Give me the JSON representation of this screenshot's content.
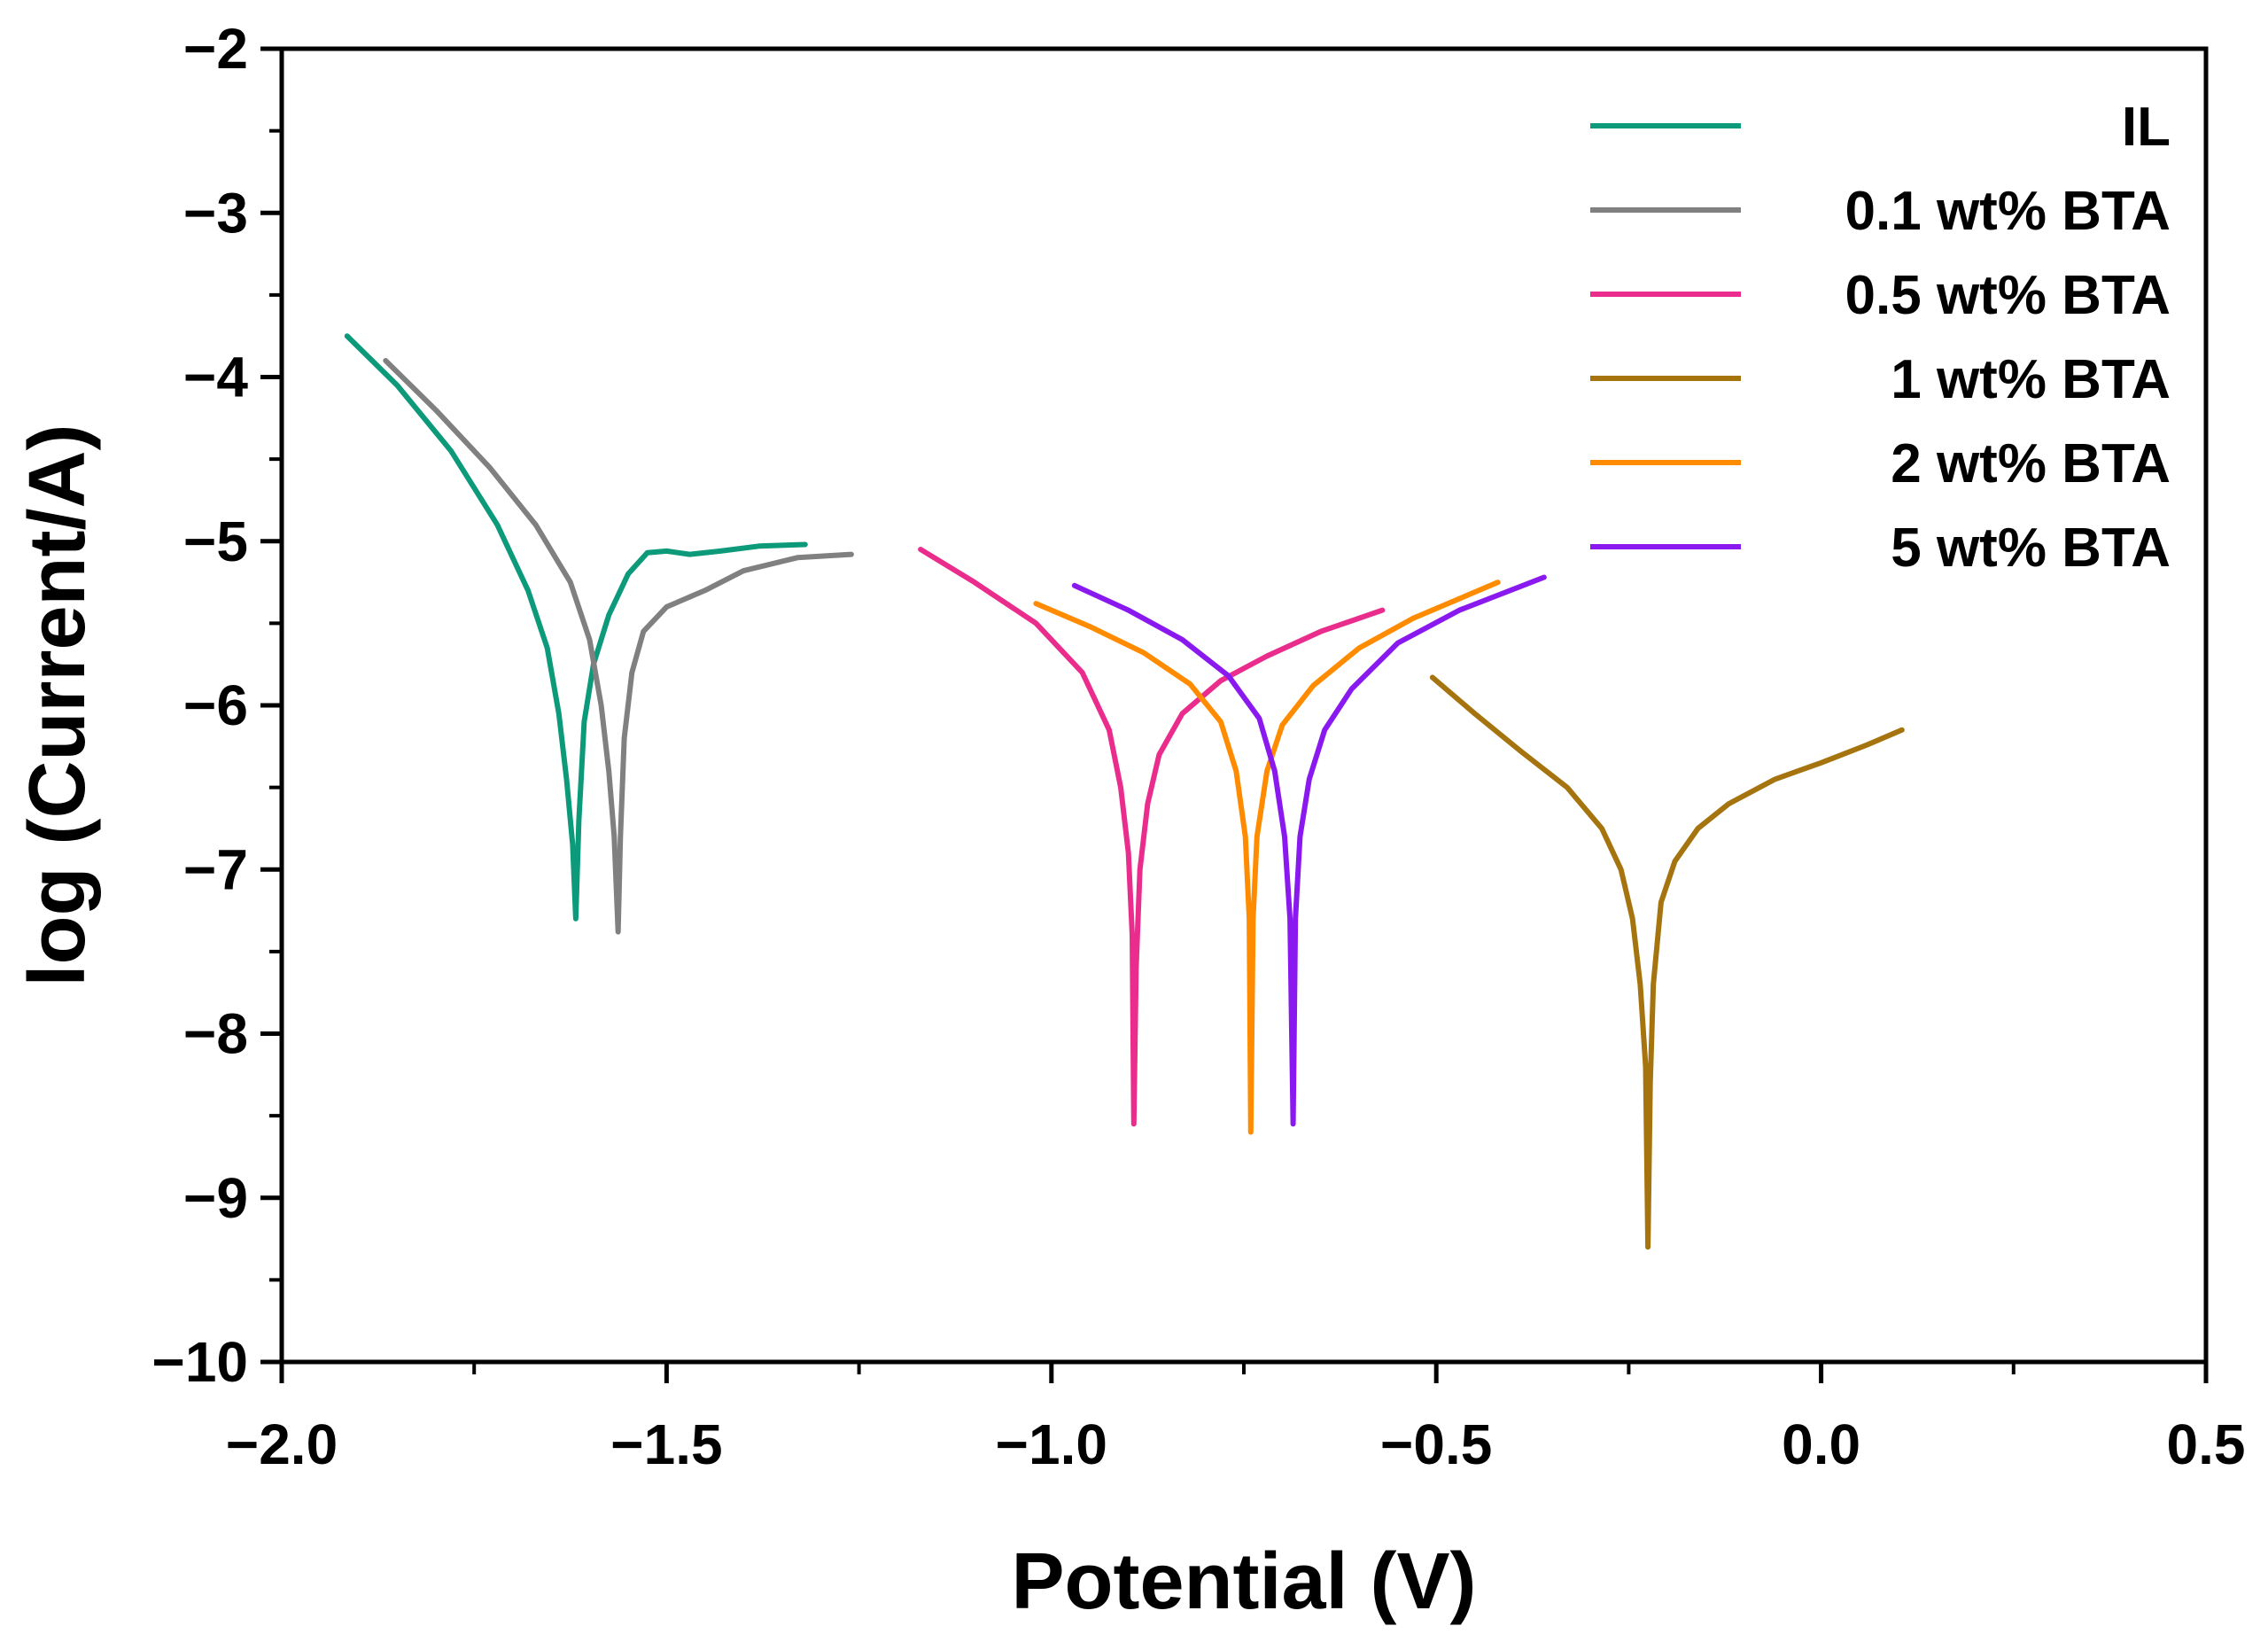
{
  "chart_data": {
    "type": "line",
    "title": "",
    "xlabel": "Potential (V)",
    "ylabel": "log (Current/A)",
    "xlim": [
      -2.0,
      0.5
    ],
    "ylim": [
      -10,
      -2
    ],
    "x_ticks": [
      -2.0,
      -1.5,
      -1.0,
      -0.5,
      0.0,
      0.5
    ],
    "x_tick_labels": [
      "−2.0",
      "−1.5",
      "−1.0",
      "−0.5",
      "0.0",
      "0.5"
    ],
    "y_ticks": [
      -2,
      -3,
      -4,
      -5,
      -6,
      -7,
      -8,
      -9,
      -10
    ],
    "y_tick_labels": [
      "−2",
      "−3",
      "−4",
      "−5",
      "−6",
      "−7",
      "−8",
      "−9",
      "−10"
    ],
    "grid": false,
    "legend_position": "top-right",
    "series": [
      {
        "name": "IL",
        "color": "#0c9a7a",
        "points": [
          [
            -1.915,
            -3.75
          ],
          [
            -1.85,
            -4.05
          ],
          [
            -1.78,
            -4.45
          ],
          [
            -1.72,
            -4.9
          ],
          [
            -1.68,
            -5.3
          ],
          [
            -1.655,
            -5.65
          ],
          [
            -1.64,
            -6.05
          ],
          [
            -1.63,
            -6.45
          ],
          [
            -1.622,
            -6.85
          ],
          [
            -1.618,
            -7.3
          ],
          [
            -1.614,
            -6.7
          ],
          [
            -1.607,
            -6.1
          ],
          [
            -1.595,
            -5.75
          ],
          [
            -1.575,
            -5.45
          ],
          [
            -1.55,
            -5.2
          ],
          [
            -1.525,
            -5.07
          ],
          [
            -1.5,
            -5.06
          ],
          [
            -1.47,
            -5.08
          ],
          [
            -1.43,
            -5.06
          ],
          [
            -1.38,
            -5.03
          ],
          [
            -1.32,
            -5.02
          ]
        ]
      },
      {
        "name": "0.1 wt% BTA",
        "color": "#808080",
        "points": [
          [
            -1.865,
            -3.9
          ],
          [
            -1.8,
            -4.2
          ],
          [
            -1.73,
            -4.55
          ],
          [
            -1.67,
            -4.9
          ],
          [
            -1.625,
            -5.25
          ],
          [
            -1.6,
            -5.6
          ],
          [
            -1.585,
            -6.0
          ],
          [
            -1.575,
            -6.4
          ],
          [
            -1.568,
            -6.8
          ],
          [
            -1.563,
            -7.38
          ],
          [
            -1.56,
            -6.8
          ],
          [
            -1.555,
            -6.2
          ],
          [
            -1.545,
            -5.8
          ],
          [
            -1.53,
            -5.55
          ],
          [
            -1.5,
            -5.4
          ],
          [
            -1.45,
            -5.3
          ],
          [
            -1.4,
            -5.18
          ],
          [
            -1.33,
            -5.1
          ],
          [
            -1.26,
            -5.08
          ]
        ]
      },
      {
        "name": "0.5 wt% BTA",
        "color": "#ea2d8c",
        "points": [
          [
            -1.17,
            -5.05
          ],
          [
            -1.1,
            -5.25
          ],
          [
            -1.02,
            -5.5
          ],
          [
            -0.96,
            -5.8
          ],
          [
            -0.925,
            -6.15
          ],
          [
            -0.91,
            -6.5
          ],
          [
            -0.9,
            -6.9
          ],
          [
            -0.895,
            -7.4
          ],
          [
            -0.893,
            -8.55
          ],
          [
            -0.89,
            -7.6
          ],
          [
            -0.885,
            -7.0
          ],
          [
            -0.875,
            -6.6
          ],
          [
            -0.86,
            -6.3
          ],
          [
            -0.83,
            -6.05
          ],
          [
            -0.78,
            -5.85
          ],
          [
            -0.72,
            -5.7
          ],
          [
            -0.65,
            -5.55
          ],
          [
            -0.57,
            -5.42
          ]
        ]
      },
      {
        "name": "1 wt% BTA",
        "color": "#a6740e",
        "points": [
          [
            -0.505,
            -5.83
          ],
          [
            -0.45,
            -6.05
          ],
          [
            -0.39,
            -6.28
          ],
          [
            -0.33,
            -6.5
          ],
          [
            -0.285,
            -6.75
          ],
          [
            -0.26,
            -7.0
          ],
          [
            -0.245,
            -7.3
          ],
          [
            -0.235,
            -7.7
          ],
          [
            -0.228,
            -8.2
          ],
          [
            -0.225,
            -9.3
          ],
          [
            -0.222,
            -8.3
          ],
          [
            -0.218,
            -7.7
          ],
          [
            -0.208,
            -7.2
          ],
          [
            -0.19,
            -6.95
          ],
          [
            -0.16,
            -6.75
          ],
          [
            -0.12,
            -6.6
          ],
          [
            -0.06,
            -6.45
          ],
          [
            0.0,
            -6.35
          ],
          [
            0.06,
            -6.24
          ],
          [
            0.105,
            -6.15
          ]
        ]
      },
      {
        "name": "2 wt% BTA",
        "color": "#ff8c00",
        "points": [
          [
            -1.02,
            -5.38
          ],
          [
            -0.95,
            -5.52
          ],
          [
            -0.88,
            -5.68
          ],
          [
            -0.82,
            -5.87
          ],
          [
            -0.78,
            -6.1
          ],
          [
            -0.76,
            -6.4
          ],
          [
            -0.748,
            -6.8
          ],
          [
            -0.743,
            -7.3
          ],
          [
            -0.741,
            -8.6
          ],
          [
            -0.738,
            -7.3
          ],
          [
            -0.733,
            -6.8
          ],
          [
            -0.72,
            -6.4
          ],
          [
            -0.7,
            -6.12
          ],
          [
            -0.66,
            -5.88
          ],
          [
            -0.6,
            -5.65
          ],
          [
            -0.53,
            -5.47
          ],
          [
            -0.42,
            -5.25
          ]
        ]
      },
      {
        "name": "5 wt% BTA",
        "color": "#8a19f0",
        "points": [
          [
            -0.97,
            -5.27
          ],
          [
            -0.9,
            -5.42
          ],
          [
            -0.83,
            -5.6
          ],
          [
            -0.77,
            -5.82
          ],
          [
            -0.73,
            -6.08
          ],
          [
            -0.71,
            -6.4
          ],
          [
            -0.697,
            -6.8
          ],
          [
            -0.69,
            -7.3
          ],
          [
            -0.686,
            -8.55
          ],
          [
            -0.683,
            -7.3
          ],
          [
            -0.677,
            -6.8
          ],
          [
            -0.665,
            -6.45
          ],
          [
            -0.645,
            -6.15
          ],
          [
            -0.61,
            -5.9
          ],
          [
            -0.55,
            -5.62
          ],
          [
            -0.47,
            -5.42
          ],
          [
            -0.36,
            -5.22
          ]
        ]
      }
    ]
  }
}
